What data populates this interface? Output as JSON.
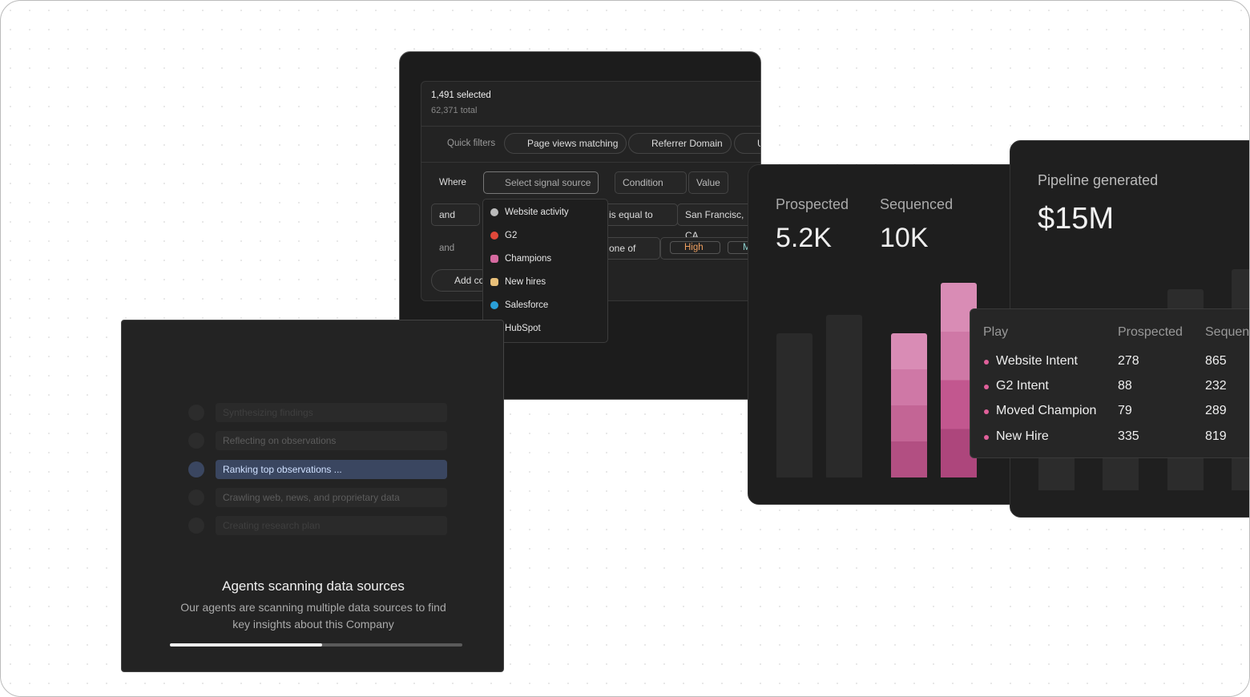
{
  "filter_panel": {
    "selected": "1,491 selected",
    "total": "62,371 total",
    "quick_filters": "Quick filters",
    "chips": [
      "Page views matching",
      "Referrer Domain",
      "U"
    ],
    "where": "Where",
    "signal_source": "Select signal source",
    "condition": "Condition",
    "value": "Value",
    "row2": {
      "conj": "and",
      "op": "is equal to",
      "val": "San Francisc, CA"
    },
    "row3": {
      "conj": "and",
      "op": "one of",
      "tags": [
        "High",
        "Med"
      ]
    },
    "add": "Add co",
    "dropdown": [
      "Website activity",
      "G2",
      "Champions",
      "New hires",
      "Salesforce",
      "HubSpot"
    ]
  },
  "agents_panel": {
    "steps": [
      "Synthesizing findings",
      "Reflecting on observations",
      "Ranking top observations ...",
      "Crawling web, news, and proprietary data",
      "Creating research plan"
    ],
    "active_step": 2,
    "title": "Agents scanning data sources",
    "description": [
      "Our agents are scanning multiple data sources to find",
      "key insights about this Company"
    ],
    "progress": 52
  },
  "stats_panel": {
    "metrics": [
      {
        "label": "Prospected",
        "value": "5.2K"
      },
      {
        "label": "Sequenced",
        "value": "10K"
      }
    ]
  },
  "pipeline_panel": {
    "label": "Pipeline generated",
    "value": "$15M"
  },
  "play_table": {
    "headers": [
      "Play",
      "Prospected",
      "Sequen"
    ],
    "rows": [
      [
        "Website Intent",
        "278",
        "865"
      ],
      [
        "G2 Intent",
        "88",
        "232"
      ],
      [
        "Moved Champion",
        "79",
        "289"
      ],
      [
        "New Hire",
        "335",
        "819"
      ]
    ]
  }
}
